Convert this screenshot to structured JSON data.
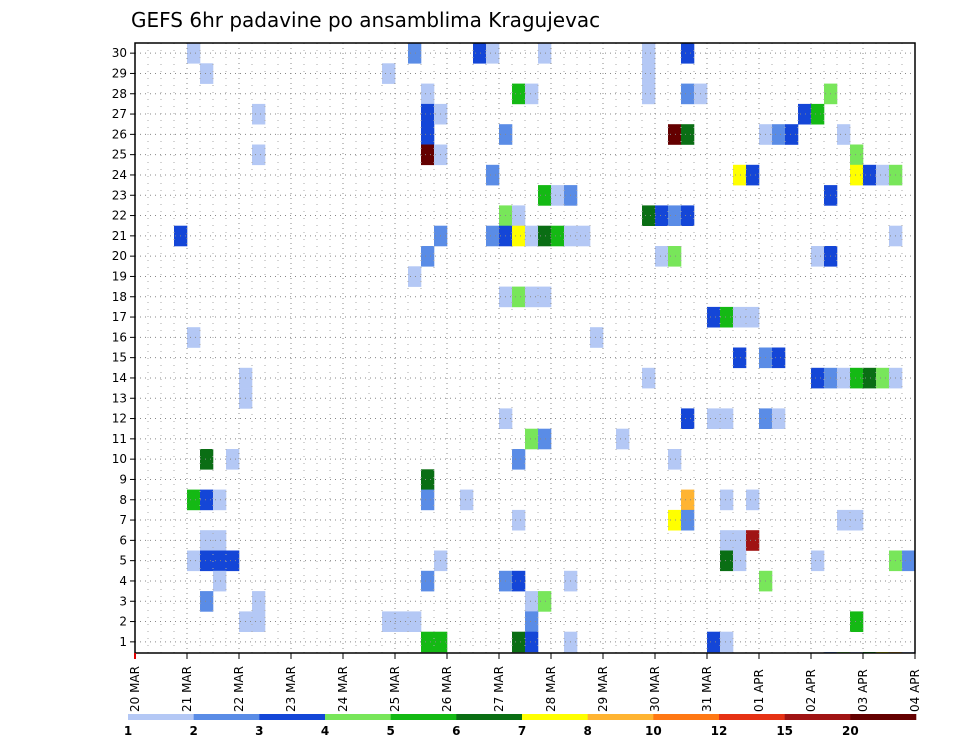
{
  "chart_data": {
    "type": "heatmap",
    "title": "GEFS 6hr padavine po ansamblima Kragujevac",
    "xlabel": "",
    "ylabel": "",
    "members": [
      1,
      2,
      3,
      4,
      5,
      6,
      7,
      8,
      9,
      10,
      11,
      12,
      13,
      14,
      15,
      16,
      17,
      18,
      19,
      20,
      21,
      22,
      23,
      24,
      25,
      26,
      27,
      28,
      29,
      30
    ],
    "x_tick_labels": [
      "20 MAR",
      "21 MAR",
      "22 MAR",
      "23 MAR",
      "24 MAR",
      "25 MAR",
      "26 MAR",
      "27 MAR",
      "28 MAR",
      "29 MAR",
      "30 MAR",
      "31 MAR",
      "01 APR",
      "02 APR",
      "03 APR",
      "04 APR"
    ],
    "x_range_steps": [
      0,
      60
    ],
    "steps_per_day": 4,
    "grid": true,
    "colorbar": {
      "ticks": [
        "1",
        "2",
        "3",
        "4",
        "5",
        "6",
        "7",
        "8",
        "10",
        "12",
        "15",
        "20"
      ],
      "colors": [
        "#b4c8f5",
        "#5a8ce6",
        "#1446d7",
        "#78e65a",
        "#14b914",
        "#0a6e14",
        "#ffff00",
        "#ffb432",
        "#ff7814",
        "#e63214",
        "#a01414",
        "#640000"
      ]
    },
    "cells": [
      [
        30,
        5,
        1
      ],
      [
        30,
        22,
        2
      ],
      [
        30,
        27,
        3
      ],
      [
        30,
        28,
        1
      ],
      [
        30,
        32,
        1
      ],
      [
        30,
        40,
        1
      ],
      [
        30,
        43,
        3
      ],
      [
        29,
        6,
        1
      ],
      [
        29,
        20,
        1
      ],
      [
        29,
        40,
        1
      ],
      [
        28,
        23,
        1
      ],
      [
        28,
        30,
        5
      ],
      [
        28,
        31,
        1
      ],
      [
        28,
        40,
        1
      ],
      [
        28,
        43,
        2
      ],
      [
        28,
        44,
        1
      ],
      [
        28,
        54,
        4
      ],
      [
        27,
        10,
        1
      ],
      [
        27,
        23,
        3
      ],
      [
        27,
        24,
        1
      ],
      [
        27,
        52,
        3
      ],
      [
        27,
        53,
        5
      ],
      [
        26,
        23,
        3
      ],
      [
        26,
        29,
        2
      ],
      [
        26,
        42,
        12
      ],
      [
        26,
        43,
        6
      ],
      [
        26,
        49,
        1
      ],
      [
        26,
        50,
        2
      ],
      [
        26,
        51,
        3
      ],
      [
        26,
        55,
        1
      ],
      [
        25,
        10,
        1
      ],
      [
        25,
        23,
        12
      ],
      [
        25,
        24,
        1
      ],
      [
        25,
        56,
        4
      ],
      [
        24,
        28,
        2
      ],
      [
        24,
        47,
        7
      ],
      [
        24,
        48,
        3
      ],
      [
        24,
        56,
        7
      ],
      [
        24,
        57,
        3
      ],
      [
        24,
        58,
        1
      ],
      [
        24,
        59,
        4
      ],
      [
        23,
        32,
        5
      ],
      [
        23,
        33,
        1
      ],
      [
        23,
        34,
        2
      ],
      [
        23,
        54,
        3
      ],
      [
        22,
        29,
        4
      ],
      [
        22,
        30,
        1
      ],
      [
        22,
        40,
        6
      ],
      [
        22,
        41,
        3
      ],
      [
        22,
        42,
        2
      ],
      [
        22,
        43,
        3
      ],
      [
        21,
        4,
        3
      ],
      [
        21,
        24,
        2
      ],
      [
        21,
        28,
        2
      ],
      [
        21,
        29,
        3
      ],
      [
        21,
        30,
        7
      ],
      [
        21,
        31,
        1
      ],
      [
        21,
        32,
        6
      ],
      [
        21,
        33,
        5
      ],
      [
        21,
        34,
        1
      ],
      [
        21,
        35,
        1
      ],
      [
        21,
        59,
        1
      ],
      [
        20,
        23,
        2
      ],
      [
        20,
        41,
        1
      ],
      [
        20,
        42,
        4
      ],
      [
        20,
        53,
        1
      ],
      [
        20,
        54,
        3
      ],
      [
        19,
        22,
        1
      ],
      [
        18,
        29,
        1
      ],
      [
        18,
        30,
        4
      ],
      [
        18,
        31,
        1
      ],
      [
        18,
        32,
        1
      ],
      [
        17,
        45,
        3
      ],
      [
        17,
        46,
        5
      ],
      [
        17,
        47,
        1
      ],
      [
        17,
        48,
        1
      ],
      [
        16,
        5,
        1
      ],
      [
        16,
        36,
        1
      ],
      [
        15,
        47,
        3
      ],
      [
        15,
        49,
        2
      ],
      [
        15,
        50,
        3
      ],
      [
        14,
        9,
        1
      ],
      [
        14,
        40,
        1
      ],
      [
        14,
        53,
        3
      ],
      [
        14,
        54,
        2
      ],
      [
        14,
        55,
        1
      ],
      [
        14,
        56,
        5
      ],
      [
        14,
        57,
        6
      ],
      [
        14,
        58,
        4
      ],
      [
        14,
        59,
        1
      ],
      [
        13,
        9,
        1
      ],
      [
        12,
        29,
        1
      ],
      [
        12,
        43,
        3
      ],
      [
        12,
        45,
        1
      ],
      [
        12,
        46,
        1
      ],
      [
        12,
        49,
        2
      ],
      [
        12,
        50,
        1
      ],
      [
        11,
        31,
        4
      ],
      [
        11,
        32,
        2
      ],
      [
        11,
        38,
        1
      ],
      [
        10,
        6,
        6
      ],
      [
        10,
        8,
        1
      ],
      [
        10,
        30,
        2
      ],
      [
        10,
        42,
        1
      ],
      [
        9,
        23,
        6
      ],
      [
        8,
        5,
        5
      ],
      [
        8,
        6,
        3
      ],
      [
        8,
        7,
        1
      ],
      [
        8,
        23,
        2
      ],
      [
        8,
        26,
        1
      ],
      [
        8,
        43,
        8
      ],
      [
        8,
        46,
        1
      ],
      [
        8,
        48,
        1
      ],
      [
        7,
        30,
        1
      ],
      [
        7,
        42,
        7
      ],
      [
        7,
        43,
        2
      ],
      [
        7,
        55,
        1
      ],
      [
        7,
        56,
        1
      ],
      [
        6,
        6,
        1
      ],
      [
        6,
        7,
        1
      ],
      [
        6,
        46,
        1
      ],
      [
        6,
        47,
        1
      ],
      [
        6,
        48,
        11
      ],
      [
        5,
        5,
        1
      ],
      [
        5,
        6,
        3
      ],
      [
        5,
        7,
        3
      ],
      [
        5,
        8,
        3
      ],
      [
        5,
        24,
        1
      ],
      [
        5,
        46,
        6
      ],
      [
        5,
        47,
        1
      ],
      [
        5,
        53,
        1
      ],
      [
        5,
        59,
        4
      ],
      [
        5,
        60,
        2
      ],
      [
        4,
        7,
        1
      ],
      [
        4,
        23,
        2
      ],
      [
        4,
        29,
        2
      ],
      [
        4,
        30,
        3
      ],
      [
        4,
        34,
        1
      ],
      [
        4,
        49,
        4
      ],
      [
        3,
        6,
        2
      ],
      [
        3,
        10,
        1
      ],
      [
        3,
        31,
        1
      ],
      [
        3,
        32,
        4
      ],
      [
        2,
        9,
        1
      ],
      [
        2,
        10,
        1
      ],
      [
        2,
        20,
        1
      ],
      [
        2,
        21,
        1
      ],
      [
        2,
        22,
        1
      ],
      [
        2,
        31,
        2
      ],
      [
        2,
        56,
        5
      ],
      [
        1,
        23,
        5
      ],
      [
        1,
        24,
        5
      ],
      [
        1,
        30,
        6
      ],
      [
        1,
        31,
        3
      ],
      [
        1,
        34,
        1
      ],
      [
        1,
        45,
        3
      ],
      [
        1,
        46,
        1
      ]
    ],
    "bottom_strip": [
      [
        31,
        1
      ],
      [
        54,
        2
      ],
      [
        55,
        4
      ],
      [
        56,
        1
      ],
      [
        57,
        5
      ],
      [
        58,
        7
      ],
      [
        59,
        8
      ],
      [
        60,
        1
      ]
    ]
  }
}
